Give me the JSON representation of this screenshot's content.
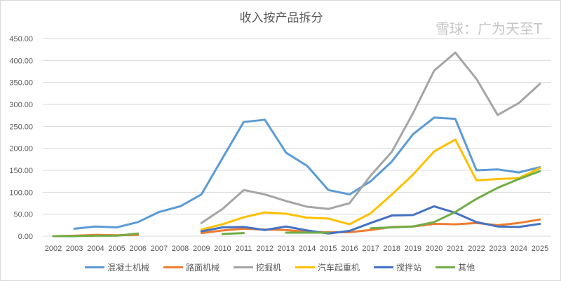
{
  "chart_data": {
    "type": "line",
    "title": "收入按产品拆分",
    "xlabel": "",
    "ylabel": "",
    "ylim": [
      0,
      450
    ],
    "yticks": [
      "0.00",
      "50.00",
      "100.00",
      "150.00",
      "200.00",
      "250.00",
      "300.00",
      "350.00",
      "400.00",
      "450.00"
    ],
    "grid": true,
    "legend": "bottom",
    "categories": [
      "2002",
      "2003",
      "2004",
      "2005",
      "2006",
      "2007",
      "2008",
      "2009",
      "2010",
      "2011",
      "2012",
      "2013",
      "2014",
      "2015",
      "2016",
      "2017",
      "2018",
      "2019",
      "2020",
      "2021",
      "2022",
      "2023",
      "2024",
      "2025"
    ],
    "series": [
      {
        "name": "混凝土机械",
        "color": "#5b9bd5",
        "values": [
          null,
          17,
          22,
          20,
          32,
          55,
          68,
          95,
          178,
          260,
          265,
          190,
          160,
          105,
          95,
          125,
          170,
          232,
          270,
          267,
          150,
          152,
          145,
          157
        ]
      },
      {
        "name": "路面机械",
        "color": "#ed7d31",
        "values": [
          0,
          1,
          3,
          2,
          3,
          null,
          null,
          7,
          13,
          17,
          15,
          14,
          10,
          9,
          9,
          14,
          21,
          22,
          28,
          27,
          30,
          25,
          30,
          38
        ]
      },
      {
        "name": "挖掘机",
        "color": "#a5a5a5",
        "values": [
          null,
          null,
          null,
          null,
          null,
          null,
          null,
          30,
          62,
          105,
          95,
          80,
          67,
          62,
          75,
          138,
          192,
          280,
          377,
          418,
          358,
          276,
          303,
          347
        ]
      },
      {
        "name": "汽车起重机",
        "color": "#ffc000",
        "values": [
          null,
          null,
          null,
          null,
          null,
          null,
          null,
          15,
          27,
          43,
          54,
          51,
          42,
          40,
          27,
          52,
          95,
          140,
          193,
          220,
          127,
          130,
          132,
          155
        ]
      },
      {
        "name": "搅拌站",
        "color": "#4472c4",
        "values": [
          null,
          null,
          null,
          null,
          null,
          null,
          null,
          11,
          20,
          21,
          14,
          22,
          13,
          6,
          12,
          30,
          47,
          48,
          68,
          53,
          32,
          22,
          21,
          28
        ]
      },
      {
        "name": "其他",
        "color": "#70ad47",
        "values": [
          0,
          0,
          1,
          1,
          6,
          null,
          null,
          null,
          5,
          7,
          null,
          8,
          8,
          8,
          null,
          18,
          20,
          22,
          32,
          55,
          85,
          110,
          130,
          148
        ]
      }
    ]
  },
  "watermark": "雪球：广为天至T"
}
